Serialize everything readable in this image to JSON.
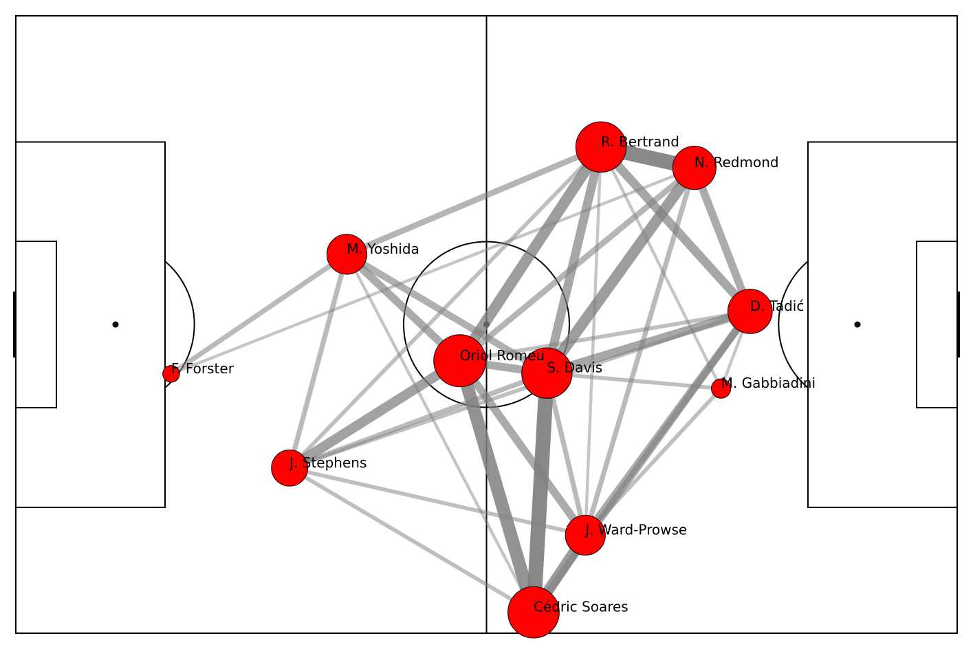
{
  "chart_data": {
    "type": "network",
    "title": "",
    "pitch": {
      "length": 120,
      "width": 80,
      "line_color": "#000000",
      "background": "#ffffff"
    },
    "node_color": "#ff0000",
    "node_edge_color": "#000000",
    "edge_color": "#808080",
    "nodes": [
      {
        "id": "forster",
        "label": "F. Forster",
        "x": 19.8,
        "y": 46.4,
        "passes": 3
      },
      {
        "id": "yoshida",
        "label": "M. Yoshida",
        "x": 42.2,
        "y": 30.9,
        "passes": 17
      },
      {
        "id": "stephens",
        "label": "J. Stephens",
        "x": 34.9,
        "y": 58.6,
        "passes": 14
      },
      {
        "id": "romeu",
        "label": "Oriol Romeu",
        "x": 56.6,
        "y": 44.7,
        "passes": 29
      },
      {
        "id": "davis",
        "label": "S. Davis",
        "x": 67.7,
        "y": 46.3,
        "passes": 27
      },
      {
        "id": "bertrand",
        "label": "R. Bertrand",
        "x": 74.6,
        "y": 17.0,
        "passes": 27
      },
      {
        "id": "redmond",
        "label": "N. Redmond",
        "x": 86.5,
        "y": 19.7,
        "passes": 20
      },
      {
        "id": "tadic",
        "label": "D. Tadić",
        "x": 93.6,
        "y": 38.3,
        "passes": 21
      },
      {
        "id": "gabbiadini",
        "label": "M. Gabbiadini",
        "x": 89.9,
        "y": 48.3,
        "passes": 4
      },
      {
        "id": "wardprowse",
        "label": "J. Ward-Prowse",
        "x": 72.6,
        "y": 67.3,
        "passes": 17
      },
      {
        "id": "cedric",
        "label": "Cédric Soares",
        "x": 66.0,
        "y": 77.3,
        "passes": 28
      }
    ],
    "edges": [
      {
        "source": "bertrand",
        "target": "redmond",
        "passes": 14
      },
      {
        "source": "bertrand",
        "target": "romeu",
        "passes": 10
      },
      {
        "source": "bertrand",
        "target": "davis",
        "passes": 8
      },
      {
        "source": "bertrand",
        "target": "tadic",
        "passes": 8
      },
      {
        "source": "bertrand",
        "target": "yoshida",
        "passes": 5
      },
      {
        "source": "bertrand",
        "target": "stephens",
        "passes": 3
      },
      {
        "source": "bertrand",
        "target": "wardprowse",
        "passes": 2
      },
      {
        "source": "bertrand",
        "target": "gabbiadini",
        "passes": 2
      },
      {
        "source": "redmond",
        "target": "davis",
        "passes": 10
      },
      {
        "source": "redmond",
        "target": "tadic",
        "passes": 7
      },
      {
        "source": "redmond",
        "target": "romeu",
        "passes": 5
      },
      {
        "source": "redmond",
        "target": "wardprowse",
        "passes": 4
      },
      {
        "source": "redmond",
        "target": "forster",
        "passes": 2
      },
      {
        "source": "yoshida",
        "target": "romeu",
        "passes": 7
      },
      {
        "source": "yoshida",
        "target": "davis",
        "passes": 6
      },
      {
        "source": "yoshida",
        "target": "forster",
        "passes": 4
      },
      {
        "source": "yoshida",
        "target": "stephens",
        "passes": 4
      },
      {
        "source": "yoshida",
        "target": "cedric",
        "passes": 2
      },
      {
        "source": "stephens",
        "target": "romeu",
        "passes": 9
      },
      {
        "source": "stephens",
        "target": "davis",
        "passes": 4
      },
      {
        "source": "stephens",
        "target": "tadic",
        "passes": 3
      },
      {
        "source": "stephens",
        "target": "wardprowse",
        "passes": 3
      },
      {
        "source": "stephens",
        "target": "cedric",
        "passes": 3
      },
      {
        "source": "romeu",
        "target": "davis",
        "passes": 7
      },
      {
        "source": "romeu",
        "target": "cedric",
        "passes": 12
      },
      {
        "source": "romeu",
        "target": "wardprowse",
        "passes": 7
      },
      {
        "source": "romeu",
        "target": "tadic",
        "passes": 3
      },
      {
        "source": "davis",
        "target": "cedric",
        "passes": 14
      },
      {
        "source": "davis",
        "target": "tadic",
        "passes": 8
      },
      {
        "source": "davis",
        "target": "wardprowse",
        "passes": 4
      },
      {
        "source": "davis",
        "target": "gabbiadini",
        "passes": 3
      },
      {
        "source": "tadic",
        "target": "wardprowse",
        "passes": 7
      },
      {
        "source": "tadic",
        "target": "cedric",
        "passes": 6
      },
      {
        "source": "tadic",
        "target": "gabbiadini",
        "passes": 2
      },
      {
        "source": "gabbiadini",
        "target": "wardprowse",
        "passes": 3
      },
      {
        "source": "wardprowse",
        "target": "cedric",
        "passes": 10
      }
    ]
  }
}
